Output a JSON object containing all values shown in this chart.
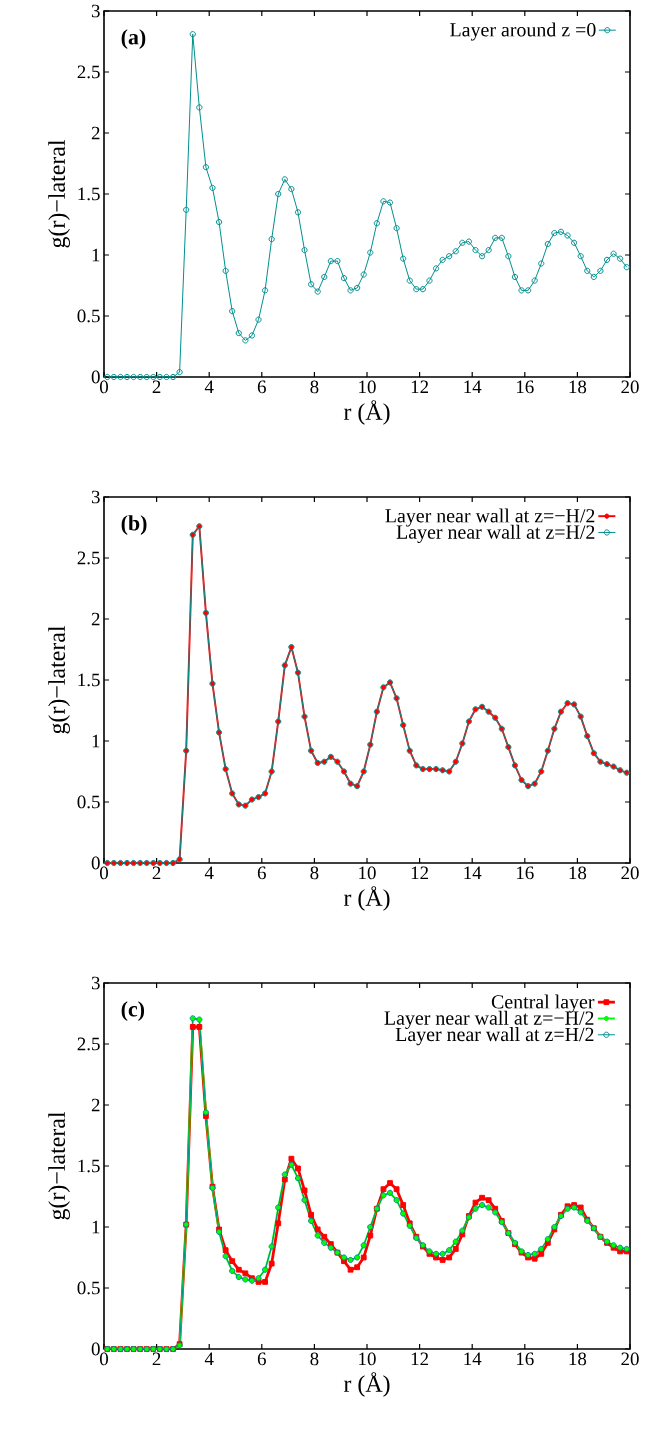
{
  "chart_data": [
    {
      "type": "line",
      "annotations": [
        "(a)"
      ],
      "xlabel": "r (Å)",
      "ylabel": "g(r)−lateral",
      "xlim": [
        0,
        20
      ],
      "ylim": [
        0,
        3
      ],
      "xticks": [
        0,
        2,
        4,
        6,
        8,
        10,
        12,
        14,
        16,
        18,
        20
      ],
      "yticks": [
        0,
        0.5,
        1,
        1.5,
        2,
        2.5,
        3
      ],
      "legend": "top right",
      "x": [
        0.125,
        0.375,
        0.625,
        0.875,
        1.125,
        1.375,
        1.625,
        1.875,
        2.125,
        2.375,
        2.625,
        2.875,
        3.125,
        3.375,
        3.625,
        3.875,
        4.125,
        4.375,
        4.625,
        4.875,
        5.125,
        5.375,
        5.625,
        5.875,
        6.125,
        6.375,
        6.625,
        6.875,
        7.125,
        7.375,
        7.625,
        7.875,
        8.125,
        8.375,
        8.625,
        8.875,
        9.125,
        9.375,
        9.625,
        9.875,
        10.125,
        10.375,
        10.625,
        10.875,
        11.125,
        11.375,
        11.625,
        11.875,
        12.125,
        12.375,
        12.625,
        12.875,
        13.125,
        13.375,
        13.625,
        13.875,
        14.125,
        14.375,
        14.625,
        14.875,
        15.125,
        15.375,
        15.625,
        15.875,
        16.125,
        16.375,
        16.625,
        16.875,
        17.125,
        17.375,
        17.625,
        17.875,
        18.125,
        18.375,
        18.625,
        18.875,
        19.125,
        19.375,
        19.625,
        19.875
      ],
      "series": [
        {
          "name": "Layer around z =0",
          "color": "#00908f",
          "marker": "circle",
          "values": [
            0,
            0,
            0,
            0,
            0,
            0,
            0,
            0,
            0,
            0,
            0,
            0.04,
            1.37,
            2.81,
            2.21,
            1.72,
            1.55,
            1.27,
            0.87,
            0.54,
            0.36,
            0.3,
            0.34,
            0.47,
            0.71,
            1.13,
            1.5,
            1.62,
            1.54,
            1.35,
            1.04,
            0.76,
            0.7,
            0.82,
            0.95,
            0.95,
            0.81,
            0.71,
            0.73,
            0.84,
            1.02,
            1.26,
            1.44,
            1.43,
            1.22,
            0.97,
            0.79,
            0.72,
            0.72,
            0.79,
            0.89,
            0.96,
            0.99,
            1.03,
            1.1,
            1.11,
            1.04,
            0.99,
            1.04,
            1.14,
            1.14,
            0.99,
            0.82,
            0.71,
            0.71,
            0.79,
            0.93,
            1.09,
            1.18,
            1.19,
            1.16,
            1.1,
            0.99,
            0.87,
            0.82,
            0.87,
            0.96,
            1.01,
            0.97,
            0.9
          ]
        }
      ]
    },
    {
      "type": "line",
      "annotations": [
        "(b)"
      ],
      "xlabel": "r (Å)",
      "ylabel": "g(r)−lateral",
      "xlim": [
        0,
        20
      ],
      "ylim": [
        0,
        3
      ],
      "xticks": [
        0,
        2,
        4,
        6,
        8,
        10,
        12,
        14,
        16,
        18,
        20
      ],
      "yticks": [
        0,
        0.5,
        1,
        1.5,
        2,
        2.5,
        3
      ],
      "legend": "top right",
      "x": [
        0.125,
        0.375,
        0.625,
        0.875,
        1.125,
        1.375,
        1.625,
        1.875,
        2.125,
        2.375,
        2.625,
        2.875,
        3.125,
        3.375,
        3.625,
        3.875,
        4.125,
        4.375,
        4.625,
        4.875,
        5.125,
        5.375,
        5.625,
        5.875,
        6.125,
        6.375,
        6.625,
        6.875,
        7.125,
        7.375,
        7.625,
        7.875,
        8.125,
        8.375,
        8.625,
        8.875,
        9.125,
        9.375,
        9.625,
        9.875,
        10.125,
        10.375,
        10.625,
        10.875,
        11.125,
        11.375,
        11.625,
        11.875,
        12.125,
        12.375,
        12.625,
        12.875,
        13.125,
        13.375,
        13.625,
        13.875,
        14.125,
        14.375,
        14.625,
        14.875,
        15.125,
        15.375,
        15.625,
        15.875,
        16.125,
        16.375,
        16.625,
        16.875,
        17.125,
        17.375,
        17.625,
        17.875,
        18.125,
        18.375,
        18.625,
        18.875,
        19.125,
        19.375,
        19.625,
        19.875
      ],
      "series": [
        {
          "name": "Layer near wall at z=−H/2",
          "color": "#ff0000",
          "marker": "circle",
          "values": [
            0,
            0,
            0,
            0,
            0,
            0,
            0,
            0,
            0,
            0,
            0,
            0.03,
            0.92,
            2.69,
            2.76,
            2.05,
            1.47,
            1.07,
            0.77,
            0.57,
            0.48,
            0.47,
            0.52,
            0.54,
            0.57,
            0.75,
            1.16,
            1.62,
            1.77,
            1.56,
            1.2,
            0.92,
            0.82,
            0.83,
            0.87,
            0.83,
            0.75,
            0.65,
            0.63,
            0.75,
            0.97,
            1.24,
            1.44,
            1.48,
            1.35,
            1.13,
            0.92,
            0.8,
            0.77,
            0.77,
            0.77,
            0.76,
            0.75,
            0.83,
            0.98,
            1.16,
            1.26,
            1.28,
            1.24,
            1.19,
            1.1,
            0.95,
            0.8,
            0.68,
            0.63,
            0.65,
            0.75,
            0.92,
            1.1,
            1.24,
            1.31,
            1.3,
            1.2,
            1.04,
            0.9,
            0.83,
            0.81,
            0.79,
            0.76,
            0.74
          ]
        },
        {
          "name": "Layer near wall at z=H/2",
          "color": "#00908f",
          "marker": "circle",
          "values": [
            0,
            0,
            0,
            0,
            0,
            0,
            0,
            0,
            0,
            0,
            0,
            0.03,
            0.92,
            2.69,
            2.76,
            2.05,
            1.47,
            1.07,
            0.77,
            0.57,
            0.48,
            0.47,
            0.52,
            0.54,
            0.57,
            0.75,
            1.16,
            1.62,
            1.77,
            1.56,
            1.2,
            0.92,
            0.82,
            0.83,
            0.87,
            0.83,
            0.75,
            0.65,
            0.63,
            0.75,
            0.97,
            1.24,
            1.44,
            1.48,
            1.35,
            1.13,
            0.92,
            0.8,
            0.77,
            0.77,
            0.77,
            0.76,
            0.75,
            0.83,
            0.98,
            1.16,
            1.26,
            1.28,
            1.24,
            1.19,
            1.1,
            0.95,
            0.8,
            0.68,
            0.63,
            0.65,
            0.75,
            0.92,
            1.1,
            1.24,
            1.31,
            1.3,
            1.2,
            1.04,
            0.9,
            0.83,
            0.81,
            0.79,
            0.76,
            0.74
          ]
        }
      ]
    },
    {
      "type": "line",
      "annotations": [
        "(c)"
      ],
      "xlabel": "r (Å)",
      "ylabel": "g(r)−lateral",
      "xlim": [
        0,
        20
      ],
      "ylim": [
        0,
        3
      ],
      "xticks": [
        0,
        2,
        4,
        6,
        8,
        10,
        12,
        14,
        16,
        18,
        20
      ],
      "yticks": [
        0,
        0.5,
        1,
        1.5,
        2,
        2.5,
        3
      ],
      "legend": "top right",
      "x": [
        0.125,
        0.375,
        0.625,
        0.875,
        1.125,
        1.375,
        1.625,
        1.875,
        2.125,
        2.375,
        2.625,
        2.875,
        3.125,
        3.375,
        3.625,
        3.875,
        4.125,
        4.375,
        4.625,
        4.875,
        5.125,
        5.375,
        5.625,
        5.875,
        6.125,
        6.375,
        6.625,
        6.875,
        7.125,
        7.375,
        7.625,
        7.875,
        8.125,
        8.375,
        8.625,
        8.875,
        9.125,
        9.375,
        9.625,
        9.875,
        10.125,
        10.375,
        10.625,
        10.875,
        11.125,
        11.375,
        11.625,
        11.875,
        12.125,
        12.375,
        12.625,
        12.875,
        13.125,
        13.375,
        13.625,
        13.875,
        14.125,
        14.375,
        14.625,
        14.875,
        15.125,
        15.375,
        15.625,
        15.875,
        16.125,
        16.375,
        16.625,
        16.875,
        17.125,
        17.375,
        17.625,
        17.875,
        18.125,
        18.375,
        18.625,
        18.875,
        19.125,
        19.375,
        19.625,
        19.875
      ],
      "series": [
        {
          "name": "Central layer",
          "color": "#ff0000",
          "marker": "square",
          "values": [
            0,
            0,
            0,
            0,
            0,
            0,
            0,
            0,
            0,
            0,
            0,
            0.04,
            1.02,
            2.64,
            2.64,
            1.91,
            1.33,
            0.98,
            0.81,
            0.72,
            0.65,
            0.62,
            0.58,
            0.55,
            0.55,
            0.7,
            1.03,
            1.39,
            1.56,
            1.48,
            1.3,
            1.1,
            0.98,
            0.92,
            0.86,
            0.79,
            0.72,
            0.65,
            0.67,
            0.75,
            0.93,
            1.15,
            1.31,
            1.36,
            1.31,
            1.18,
            1.03,
            0.92,
            0.84,
            0.78,
            0.75,
            0.73,
            0.75,
            0.82,
            0.94,
            1.09,
            1.2,
            1.24,
            1.22,
            1.15,
            1.05,
            0.95,
            0.86,
            0.79,
            0.75,
            0.74,
            0.78,
            0.87,
            0.98,
            1.1,
            1.17,
            1.18,
            1.16,
            1.06,
            0.99,
            0.92,
            0.87,
            0.83,
            0.8,
            0.8
          ]
        },
        {
          "name": "Layer near wall at z=−H/2",
          "color": "#00ff00",
          "marker": "circle",
          "values": [
            0,
            0,
            0,
            0,
            0,
            0,
            0,
            0,
            0,
            0,
            0,
            0.03,
            1.02,
            2.71,
            2.7,
            1.94,
            1.32,
            0.96,
            0.76,
            0.64,
            0.59,
            0.57,
            0.56,
            0.58,
            0.65,
            0.84,
            1.16,
            1.43,
            1.51,
            1.4,
            1.22,
            1.05,
            0.93,
            0.87,
            0.83,
            0.79,
            0.75,
            0.73,
            0.75,
            0.85,
            1.0,
            1.15,
            1.26,
            1.28,
            1.22,
            1.11,
            1.01,
            0.91,
            0.85,
            0.8,
            0.78,
            0.78,
            0.81,
            0.88,
            0.97,
            1.08,
            1.15,
            1.18,
            1.16,
            1.12,
            1.04,
            0.95,
            0.87,
            0.8,
            0.77,
            0.78,
            0.82,
            0.9,
            1.0,
            1.09,
            1.15,
            1.16,
            1.12,
            1.05,
            0.99,
            0.92,
            0.88,
            0.85,
            0.83,
            0.82
          ]
        },
        {
          "name": "Layer near wall at z=H/2",
          "color": "#00908f",
          "marker": "circle",
          "values": [
            0,
            0,
            0,
            0,
            0,
            0,
            0,
            0,
            0,
            0,
            0,
            0.03,
            1.02,
            2.71,
            2.7,
            1.94,
            1.32,
            0.96,
            0.76,
            0.64,
            0.59,
            0.57,
            0.56,
            0.58,
            0.65,
            0.84,
            1.16,
            1.43,
            1.51,
            1.4,
            1.22,
            1.05,
            0.93,
            0.87,
            0.83,
            0.79,
            0.75,
            0.73,
            0.75,
            0.85,
            1.0,
            1.15,
            1.26,
            1.28,
            1.22,
            1.11,
            1.01,
            0.91,
            0.85,
            0.8,
            0.78,
            0.78,
            0.81,
            0.88,
            0.97,
            1.08,
            1.15,
            1.18,
            1.16,
            1.12,
            1.04,
            0.95,
            0.87,
            0.8,
            0.77,
            0.78,
            0.82,
            0.9,
            1.0,
            1.09,
            1.15,
            1.16,
            1.12,
            1.05,
            0.99,
            0.92,
            0.88,
            0.85,
            0.83,
            0.82
          ]
        }
      ]
    }
  ]
}
